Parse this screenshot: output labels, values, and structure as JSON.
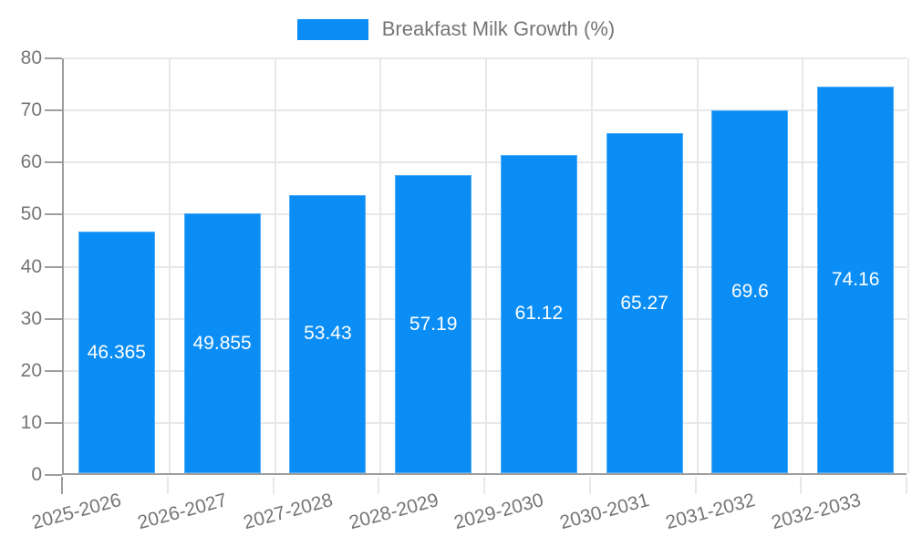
{
  "legend": {
    "label": "Breakfast Milk Growth (%)",
    "swatch_color": "#0a8df5"
  },
  "chart_data": {
    "type": "bar",
    "title": "",
    "categories": [
      "2025-2026",
      "2026-2027",
      "2027-2028",
      "2028-2029",
      "2029-2030",
      "2030-2031",
      "2031-2032",
      "2032-2033"
    ],
    "series": [
      {
        "name": "Breakfast Milk Growth (%)",
        "values": [
          46.365,
          49.855,
          53.43,
          57.19,
          61.12,
          65.27,
          69.6,
          74.16
        ],
        "value_labels": [
          "46.365",
          "49.855",
          "53.43",
          "57.19",
          "61.12",
          "65.27",
          "69.6",
          "74.16"
        ],
        "color": "#0a8df5"
      }
    ],
    "xlabel": "",
    "ylabel": "",
    "ylim": [
      0,
      80
    ],
    "yticks": [
      0,
      10,
      20,
      30,
      40,
      50,
      60,
      70,
      80
    ],
    "grid": true,
    "legend_position": "top-center",
    "value_label_position": "inside-middle",
    "value_label_color": "#ffffff",
    "x_tick_rotation_deg": -15,
    "colors": {
      "bar": "#0a8df5",
      "gridline": "#e8e8e8",
      "axis_line": "#9e9e9e",
      "tick_label": "#757575",
      "background": "#ffffff"
    }
  }
}
